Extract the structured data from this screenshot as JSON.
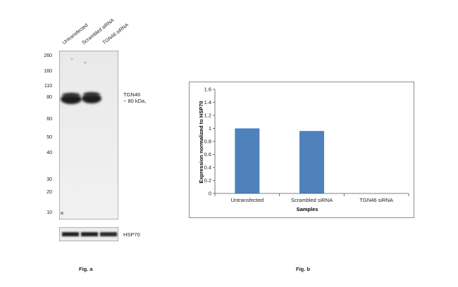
{
  "figure_a": {
    "caption": "Fig. a",
    "lanes": [
      "Untransfected",
      "Scrambled siRNA",
      "TGN46 siRNA"
    ],
    "mw_markers": [
      "260",
      "160",
      "110",
      "80",
      "60",
      "50",
      "40",
      "30",
      "20",
      "10"
    ],
    "band_label_line1": "TGN46",
    "band_label_line2": "~ 80 kDa,",
    "loading_label": "HSP70"
  },
  "chart_data": {
    "type": "bar",
    "caption": "Fig. b",
    "categories": [
      "Untransfected",
      "Scrambled siRNA",
      "TGN46 siRNA"
    ],
    "values": [
      1.0,
      0.96,
      0.0
    ],
    "xlabel": "Samples",
    "ylabel": "Expression normalized to HSP70",
    "ylim": [
      0,
      1.6
    ],
    "yticks": [
      "0",
      "0.2",
      "0.4",
      "0.6",
      "0.8",
      "1",
      "1.2",
      "1.4",
      "1.6"
    ],
    "bar_color": "#4f81bd",
    "grid": false,
    "legend": "none"
  }
}
